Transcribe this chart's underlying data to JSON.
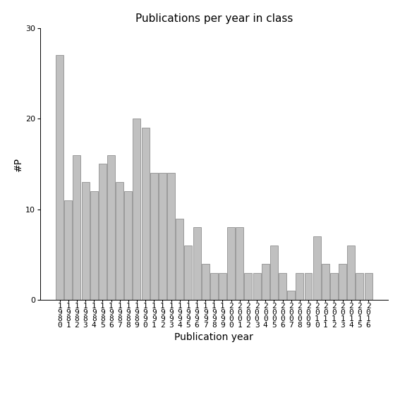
{
  "title": "Publications per year in class",
  "xlabel": "Publication year",
  "ylabel": "#P",
  "bar_color": "#c0c0c0",
  "bar_edgecolor": "#808080",
  "background_color": "#ffffff",
  "years": [
    1980,
    1981,
    1982,
    1983,
    1984,
    1985,
    1986,
    1987,
    1988,
    1989,
    1990,
    1991,
    1992,
    1993,
    1994,
    1995,
    1996,
    1997,
    1998,
    1999,
    2000,
    2001,
    2002,
    2003,
    2004,
    2005,
    2006,
    2007,
    2008,
    2009,
    2010,
    2011,
    2012,
    2013,
    2014,
    2015,
    2016
  ],
  "values": [
    27,
    11,
    16,
    13,
    12,
    15,
    16,
    13,
    12,
    20,
    19,
    14,
    14,
    14,
    9,
    6,
    8,
    4,
    3,
    3,
    8,
    8,
    3,
    3,
    4,
    6,
    3,
    1,
    3,
    3,
    7,
    4,
    3,
    4,
    6,
    3,
    3
  ],
  "ylim": [
    0,
    30
  ],
  "yticks": [
    0,
    10,
    20,
    30
  ],
  "title_fontsize": 11,
  "label_fontsize": 10,
  "tick_fontsize": 8
}
